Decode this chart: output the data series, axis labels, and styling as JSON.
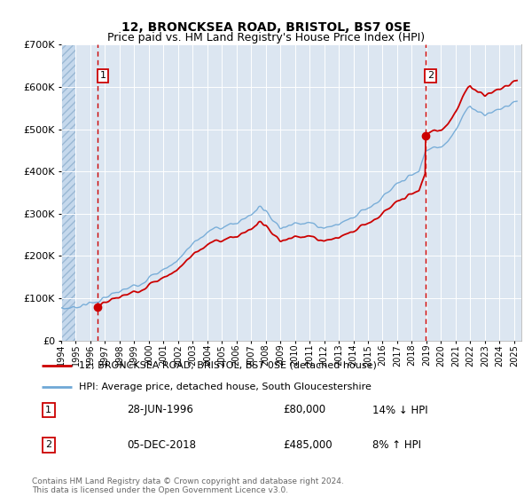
{
  "title": "12, BRONCKSEA ROAD, BRISTOL, BS7 0SE",
  "subtitle": "Price paid vs. HM Land Registry's House Price Index (HPI)",
  "legend_line1": "12, BRONCKSEA ROAD, BRISTOL, BS7 0SE (detached house)",
  "legend_line2": "HPI: Average price, detached house, South Gloucestershire",
  "footnote": "Contains HM Land Registry data © Crown copyright and database right 2024.\nThis data is licensed under the Open Government Licence v3.0.",
  "table_rows": [
    {
      "num": "1",
      "date": "28-JUN-1996",
      "price": "£80,000",
      "hpi": "14% ↓ HPI"
    },
    {
      "num": "2",
      "date": "05-DEC-2018",
      "price": "£485,000",
      "hpi": "8% ↑ HPI"
    }
  ],
  "sale1_year": 1996.5,
  "sale1_price": 80000,
  "sale2_year": 2018.92,
  "sale2_price": 485000,
  "bg_color": "#dce6f1",
  "hatch_color": "#c5d8ec",
  "hpi_color": "#6fa8d6",
  "price_color": "#cc0000",
  "vline_color": "#cc0000",
  "ylim_max": 700000,
  "xmin": 1994.0,
  "xmax": 2025.5
}
